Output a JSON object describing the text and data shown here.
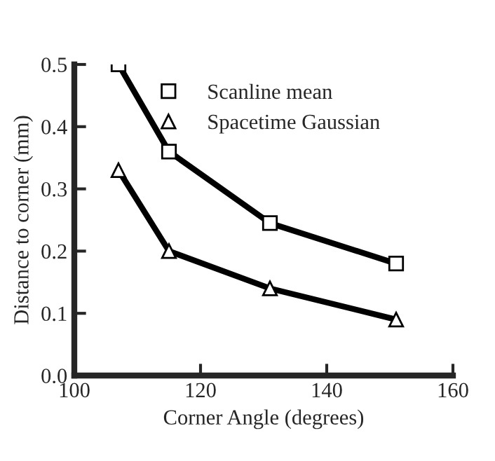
{
  "chart_data": {
    "type": "line",
    "xlabel": "Corner Angle (degrees)",
    "ylabel": "Distance to corner (mm)",
    "x": [
      107,
      115,
      131,
      151
    ],
    "series": [
      {
        "name": "Scanline mean",
        "color": "#000000",
        "marker": "square",
        "values": [
          0.5,
          0.36,
          0.245,
          0.18
        ]
      },
      {
        "name": "Spacetime Gaussian",
        "color": "#000000",
        "marker": "triangle",
        "values": [
          0.33,
          0.2,
          0.14,
          0.09
        ]
      }
    ],
    "xlim": [
      100,
      160
    ],
    "xticks": [
      100,
      120,
      140,
      160
    ],
    "ylim": [
      0,
      0.5
    ],
    "yticks": [
      {
        "value": 0,
        "label": "0.0"
      },
      0.1,
      0.2,
      0.3,
      0.4,
      0.5
    ],
    "grid": false,
    "legend": "top",
    "line_style": "solid"
  }
}
